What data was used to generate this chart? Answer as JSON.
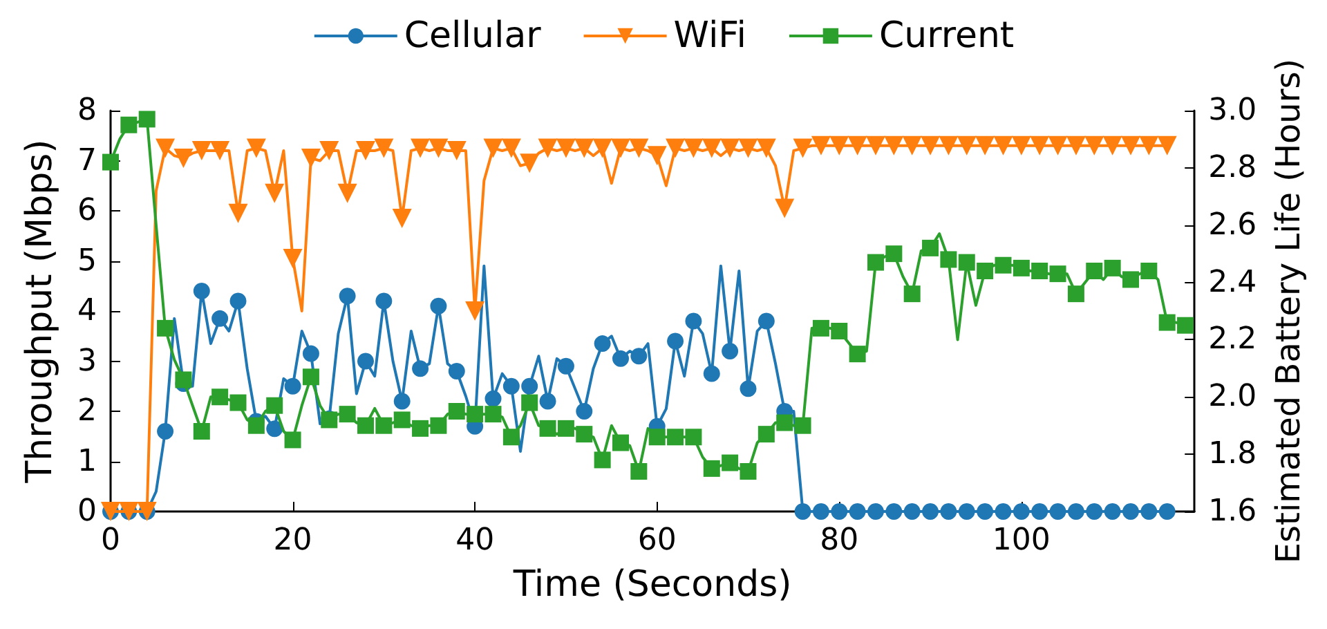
{
  "chart_data": {
    "type": "line",
    "xlabel": "Time (Seconds)",
    "ylabel": "Throughput (Mbps)",
    "y2label": "Estimated Battery Life (Hours)",
    "x": [
      0,
      1,
      2,
      3,
      4,
      5,
      6,
      7,
      8,
      9,
      10,
      11,
      12,
      13,
      14,
      15,
      16,
      17,
      18,
      19,
      20,
      21,
      22,
      23,
      24,
      25,
      26,
      27,
      28,
      29,
      30,
      31,
      32,
      33,
      34,
      35,
      36,
      37,
      38,
      39,
      40,
      41,
      42,
      43,
      44,
      45,
      46,
      47,
      48,
      49,
      50,
      51,
      52,
      53,
      54,
      55,
      56,
      57,
      58,
      59,
      60,
      61,
      62,
      63,
      64,
      65,
      66,
      67,
      68,
      69,
      70,
      71,
      72,
      73,
      74,
      75,
      76,
      77,
      78,
      79,
      80,
      81,
      82,
      83,
      84,
      85,
      86,
      87,
      88,
      89,
      90,
      91,
      92,
      93,
      94,
      95,
      96,
      97,
      98,
      99,
      100,
      101,
      102,
      103,
      104,
      105,
      106,
      107,
      108,
      109,
      110,
      111,
      112,
      113,
      114,
      115,
      116,
      117,
      118
    ],
    "series": [
      {
        "name": "Cellular",
        "color": "#1f77b4",
        "marker": "circle",
        "values": [
          0,
          0,
          0,
          0,
          0,
          0.4,
          1.6,
          3.85,
          2.55,
          2.5,
          4.4,
          3.35,
          3.85,
          3.6,
          4.2,
          2.85,
          1.8,
          1.9,
          1.65,
          2.65,
          2.5,
          3.6,
          3.15,
          1.75,
          1.85,
          3.55,
          4.3,
          2.35,
          3.0,
          2.7,
          4.2,
          3.0,
          2.2,
          3.6,
          2.85,
          2.95,
          4.1,
          2.95,
          2.8,
          2.3,
          1.7,
          4.9,
          2.25,
          2.75,
          2.5,
          1.2,
          2.5,
          3.1,
          2.2,
          3.05,
          2.9,
          2.45,
          2.0,
          2.85,
          3.35,
          3.5,
          3.05,
          3.2,
          3.1,
          3.35,
          1.7,
          2.05,
          3.4,
          2.7,
          3.8,
          3.55,
          2.75,
          4.9,
          3.2,
          4.8,
          2.45,
          3.6,
          3.8,
          2.95,
          2.0,
          2.0,
          0,
          0,
          0,
          0,
          0,
          0,
          0,
          0,
          0,
          0,
          0,
          0,
          0,
          0,
          0,
          0,
          0,
          0,
          0,
          0,
          0,
          0,
          0,
          0,
          0,
          0,
          0,
          0,
          0,
          0,
          0,
          0,
          0,
          0,
          0,
          0,
          0,
          0,
          0,
          0,
          0,
          null,
          null
        ]
      },
      {
        "name": "WiFi",
        "color": "#ff7f0e",
        "marker": "triangle-down",
        "values": [
          0,
          0,
          0,
          0,
          0,
          6.4,
          7.25,
          7.1,
          7.05,
          7.15,
          7.2,
          7.2,
          7.2,
          7.2,
          5.95,
          7.2,
          7.25,
          7.2,
          6.35,
          7.2,
          5.05,
          4.0,
          7.05,
          7.0,
          7.2,
          7.2,
          6.35,
          7.2,
          7.2,
          7.2,
          7.25,
          7.2,
          5.85,
          7.2,
          7.25,
          7.2,
          7.25,
          7.2,
          7.2,
          7.2,
          4.0,
          6.6,
          7.25,
          7.2,
          7.25,
          6.9,
          6.95,
          7.15,
          7.25,
          7.2,
          7.25,
          7.2,
          7.25,
          7.1,
          7.25,
          6.55,
          7.25,
          7.2,
          7.25,
          7.2,
          7.1,
          6.5,
          7.25,
          7.2,
          7.25,
          7.2,
          7.25,
          7.1,
          7.25,
          7.2,
          7.25,
          7.2,
          7.25,
          6.9,
          6.05,
          7.2,
          7.25,
          7.3,
          7.3,
          7.3,
          7.3,
          7.3,
          7.3,
          7.3,
          7.3,
          7.3,
          7.3,
          7.3,
          7.3,
          7.3,
          7.3,
          7.3,
          7.3,
          7.3,
          7.3,
          7.3,
          7.3,
          7.3,
          7.3,
          7.3,
          7.3,
          7.3,
          7.3,
          7.3,
          7.3,
          7.3,
          7.3,
          7.3,
          7.3,
          7.3,
          7.3,
          7.3,
          7.3,
          7.3,
          7.3,
          7.3,
          7.3,
          null,
          null
        ]
      },
      {
        "name": "Current",
        "color": "#2ca02c",
        "marker": "square",
        "axis": "y2",
        "values": [
          2.82,
          2.9,
          2.95,
          2.96,
          2.97,
          2.6,
          2.24,
          2.13,
          2.06,
          1.97,
          1.88,
          2.0,
          2.0,
          1.99,
          1.98,
          1.92,
          1.9,
          1.95,
          1.97,
          1.88,
          1.85,
          1.97,
          2.07,
          1.97,
          1.92,
          1.94,
          1.94,
          1.91,
          1.9,
          1.96,
          1.9,
          1.91,
          1.92,
          1.9,
          1.89,
          1.9,
          1.9,
          1.94,
          1.95,
          1.94,
          1.94,
          1.94,
          1.94,
          1.93,
          1.86,
          1.9,
          1.98,
          1.9,
          1.89,
          1.87,
          1.89,
          1.89,
          1.87,
          1.86,
          1.78,
          1.9,
          1.84,
          1.83,
          1.74,
          1.89,
          1.86,
          1.86,
          1.86,
          1.86,
          1.86,
          1.79,
          1.75,
          1.76,
          1.77,
          1.75,
          1.74,
          1.84,
          1.87,
          1.91,
          1.91,
          1.9,
          1.9,
          2.24,
          2.24,
          2.24,
          2.23,
          2.19,
          2.15,
          2.16,
          2.47,
          2.49,
          2.5,
          2.42,
          2.36,
          2.51,
          2.52,
          2.57,
          2.48,
          2.2,
          2.47,
          2.32,
          2.44,
          2.46,
          2.46,
          2.46,
          2.45,
          2.44,
          2.44,
          2.43,
          2.43,
          2.43,
          2.36,
          2.4,
          2.44,
          2.41,
          2.45,
          2.42,
          2.41,
          2.43,
          2.44,
          2.41,
          2.26,
          2.26,
          2.25
        ]
      }
    ],
    "xlim": [
      0,
      119
    ],
    "xticks": [
      0,
      20,
      40,
      60,
      80,
      100
    ],
    "ylim": [
      0,
      8
    ],
    "yticks": [
      0,
      1,
      2,
      3,
      4,
      5,
      6,
      7,
      8
    ],
    "y2lim": [
      1.6,
      3.0
    ],
    "y2ticks": [
      1.6,
      1.8,
      {
        "value": 2.0,
        "label": "2.0"
      },
      2.2,
      2.4,
      2.6,
      2.8,
      {
        "value": 3.0,
        "label": "3.0"
      }
    ],
    "legend": "top",
    "grid": false,
    "line_style": "solid"
  }
}
